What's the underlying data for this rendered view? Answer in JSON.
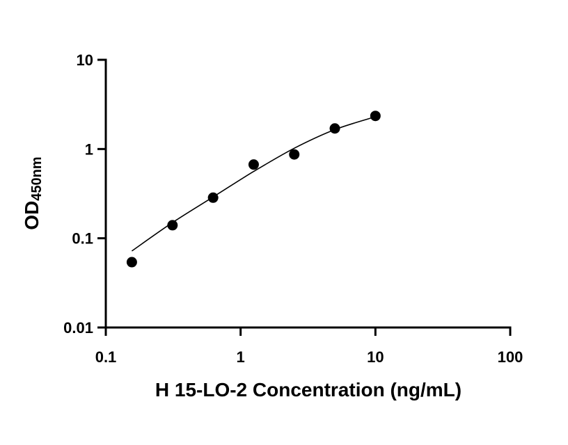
{
  "chart_data": {
    "type": "scatter",
    "title": "",
    "xlabel": "H 15-LO-2 Concentration (ng/mL)",
    "ylabel": {
      "main": "OD",
      "subscript": "450nm"
    },
    "x_scale": "log",
    "y_scale": "log",
    "xlim": [
      0.1,
      100
    ],
    "ylim": [
      0.01,
      10
    ],
    "x_ticks": [
      0.1,
      1,
      10,
      100
    ],
    "x_tick_labels": [
      "0.1",
      "1",
      "10",
      "100"
    ],
    "y_ticks": [
      0.01,
      0.1,
      1,
      10
    ],
    "y_tick_labels": [
      "0.01",
      "0.1",
      "1",
      "10"
    ],
    "grid": false,
    "legend": "none",
    "point_color": "#000000",
    "series": [
      {
        "x": [
          0.156,
          0.3125,
          0.625,
          1.25,
          2.5,
          5,
          10
        ],
        "y": [
          0.054,
          0.14,
          0.285,
          0.67,
          0.87,
          1.7,
          2.35
        ]
      }
    ],
    "fit_curve": {
      "x": [
        0.156,
        0.3125,
        0.625,
        1.25,
        2.5,
        5,
        10
      ],
      "y": [
        0.072,
        0.15,
        0.29,
        0.56,
        1.02,
        1.65,
        2.3
      ]
    }
  }
}
